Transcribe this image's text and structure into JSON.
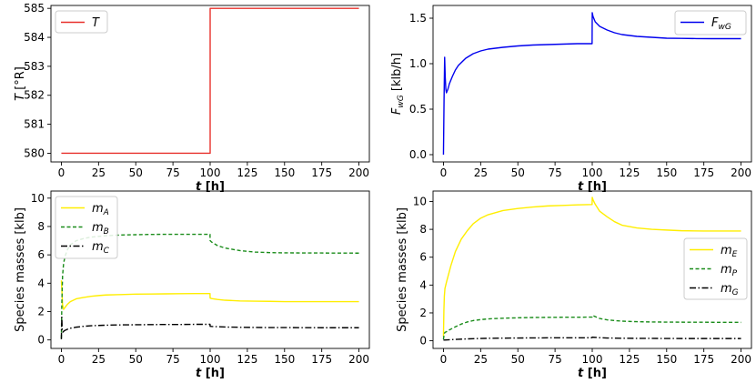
{
  "chart_data": [
    {
      "id": "p1",
      "type": "line",
      "xlabel": "t [h]",
      "ylabel": "T [°R]",
      "xlim": [
        -7,
        207
      ],
      "ylim": [
        579.7,
        585.1
      ],
      "xticks": [
        0,
        25,
        50,
        75,
        100,
        125,
        150,
        175,
        200
      ],
      "yticks": [
        580,
        581,
        582,
        583,
        584,
        585
      ],
      "ytick_labels": [
        "580",
        "581",
        "582",
        "583",
        "584",
        "585"
      ],
      "legend_position": "top-left",
      "series": [
        {
          "name": "T",
          "sub": "",
          "color": "#e8302c",
          "dash": "solid",
          "x": [
            0,
            100,
            100,
            200
          ],
          "y": [
            580,
            580,
            585,
            585
          ]
        }
      ]
    },
    {
      "id": "p2",
      "type": "line",
      "xlabel": "t [h]",
      "ylabel": "F_wG [klb/h]",
      "xlim": [
        -7,
        207
      ],
      "ylim": [
        -0.08,
        1.64
      ],
      "xticks": [
        0,
        25,
        50,
        75,
        100,
        125,
        150,
        175,
        200
      ],
      "yticks": [
        0,
        0.5,
        1,
        1.5
      ],
      "ytick_labels": [
        "0.0",
        "0.5",
        "1.0",
        "1.5"
      ],
      "legend_position": "top-right",
      "series": [
        {
          "name": "F",
          "sub": "wG",
          "color": "#0000ee",
          "dash": "solid",
          "x": [
            0,
            0.4,
            0.8,
            1.2,
            1.6,
            2,
            3,
            4,
            6,
            8,
            10,
            15,
            20,
            25,
            30,
            40,
            50,
            60,
            70,
            80,
            90,
            99.9,
            100,
            100.5,
            102,
            105,
            110,
            115,
            120,
            130,
            140,
            150,
            160,
            170,
            180,
            190,
            200
          ],
          "y": [
            0,
            0.6,
            1.07,
            0.85,
            0.72,
            0.68,
            0.72,
            0.78,
            0.86,
            0.93,
            0.98,
            1.06,
            1.11,
            1.14,
            1.16,
            1.18,
            1.195,
            1.205,
            1.21,
            1.215,
            1.22,
            1.22,
            1.56,
            1.52,
            1.46,
            1.41,
            1.37,
            1.34,
            1.32,
            1.3,
            1.29,
            1.28,
            1.278,
            1.276,
            1.275,
            1.275,
            1.275
          ]
        }
      ]
    },
    {
      "id": "p3",
      "type": "line",
      "xlabel": "t [h]",
      "ylabel": "Species masses [klb]",
      "xlim": [
        -7,
        207
      ],
      "ylim": [
        -0.6,
        10.5
      ],
      "xticks": [
        0,
        25,
        50,
        75,
        100,
        125,
        150,
        175,
        200
      ],
      "yticks": [
        0,
        2,
        4,
        6,
        8,
        10
      ],
      "ytick_labels": [
        "0",
        "2",
        "4",
        "6",
        "8",
        "10"
      ],
      "legend_position": "top-left",
      "series": [
        {
          "name": "m",
          "sub": "A",
          "color": "#ffee00",
          "dash": "solid",
          "x": [
            0,
            0.3,
            0.8,
            1.5,
            2.5,
            4,
            6,
            10,
            15,
            20,
            25,
            30,
            40,
            50,
            60,
            70,
            80,
            90,
            99.9,
            100,
            101,
            105,
            110,
            120,
            130,
            140,
            150,
            175,
            200
          ],
          "y": [
            4.2,
            3.6,
            2.5,
            2.15,
            2.3,
            2.5,
            2.7,
            2.9,
            3.0,
            3.08,
            3.13,
            3.17,
            3.2,
            3.23,
            3.24,
            3.25,
            3.26,
            3.27,
            3.27,
            2.95,
            2.92,
            2.85,
            2.8,
            2.75,
            2.73,
            2.72,
            2.7,
            2.7,
            2.7
          ]
        },
        {
          "name": "m",
          "sub": "B",
          "color": "#1a8c1a",
          "dash": "dashed",
          "x": [
            0,
            0.3,
            0.8,
            1.5,
            2.5,
            4,
            6,
            10,
            15,
            20,
            25,
            30,
            40,
            50,
            60,
            70,
            80,
            90,
            99.9,
            100,
            101,
            105,
            110,
            120,
            130,
            140,
            150,
            175,
            200
          ],
          "y": [
            0.1,
            2.5,
            4.5,
            5.4,
            5.9,
            6.35,
            6.7,
            7.0,
            7.15,
            7.25,
            7.3,
            7.35,
            7.4,
            7.42,
            7.44,
            7.45,
            7.45,
            7.45,
            7.45,
            7.0,
            6.9,
            6.65,
            6.48,
            6.3,
            6.2,
            6.16,
            6.14,
            6.13,
            6.12
          ]
        },
        {
          "name": "m",
          "sub": "C",
          "color": "#000000",
          "dash": "dashdot",
          "x": [
            0,
            0.3,
            0.6,
            1,
            2,
            4,
            6,
            10,
            15,
            20,
            25,
            30,
            40,
            50,
            60,
            70,
            80,
            90,
            99.9,
            100,
            101,
            105,
            110,
            120,
            130,
            140,
            150,
            175,
            200
          ],
          "y": [
            0.05,
            1.6,
            0.6,
            0.55,
            0.65,
            0.75,
            0.82,
            0.9,
            0.96,
            1.0,
            1.02,
            1.04,
            1.06,
            1.07,
            1.08,
            1.09,
            1.09,
            1.1,
            1.1,
            0.96,
            0.95,
            0.93,
            0.91,
            0.89,
            0.88,
            0.87,
            0.87,
            0.86,
            0.86
          ]
        }
      ]
    },
    {
      "id": "p4",
      "type": "line",
      "xlabel": "t [h]",
      "ylabel": "Species masses [klb]",
      "xlim": [
        -7,
        207
      ],
      "ylim": [
        -0.55,
        10.75
      ],
      "xticks": [
        0,
        25,
        50,
        75,
        100,
        125,
        150,
        175,
        200
      ],
      "yticks": [
        0,
        2,
        4,
        6,
        8,
        10
      ],
      "ytick_labels": [
        "0",
        "2",
        "4",
        "6",
        "8",
        "10"
      ],
      "legend_position": "center-right",
      "series": [
        {
          "name": "m",
          "sub": "E",
          "color": "#ffee00",
          "dash": "solid",
          "x": [
            0,
            0.3,
            0.6,
            1,
            2,
            3,
            5,
            8,
            12,
            16,
            20,
            25,
            30,
            40,
            50,
            60,
            70,
            80,
            90,
            99.9,
            100,
            100.6,
            102,
            105,
            110,
            115,
            120,
            130,
            140,
            150,
            160,
            175,
            200
          ],
          "y": [
            0.3,
            2.2,
            3.2,
            3.75,
            4.2,
            4.6,
            5.4,
            6.4,
            7.3,
            7.9,
            8.4,
            8.8,
            9.05,
            9.35,
            9.5,
            9.6,
            9.68,
            9.72,
            9.76,
            9.78,
            10.3,
            10.1,
            9.8,
            9.3,
            8.9,
            8.55,
            8.3,
            8.1,
            8.0,
            7.95,
            7.9,
            7.88,
            7.88
          ]
        },
        {
          "name": "m",
          "sub": "P",
          "color": "#1a8c1a",
          "dash": "dashed",
          "x": [
            0,
            0.5,
            1,
            2,
            4,
            8,
            12,
            16,
            20,
            25,
            30,
            40,
            50,
            60,
            70,
            80,
            90,
            99.9,
            100,
            101,
            105,
            110,
            115,
            120,
            130,
            140,
            150,
            175,
            200
          ],
          "y": [
            0.1,
            0.5,
            0.6,
            0.65,
            0.78,
            1.0,
            1.2,
            1.35,
            1.45,
            1.52,
            1.57,
            1.62,
            1.65,
            1.67,
            1.68,
            1.69,
            1.69,
            1.7,
            1.8,
            1.78,
            1.6,
            1.5,
            1.45,
            1.41,
            1.37,
            1.35,
            1.34,
            1.33,
            1.32
          ]
        },
        {
          "name": "m",
          "sub": "G",
          "color": "#000000",
          "dash": "dashdot",
          "x": [
            0,
            2,
            5,
            10,
            20,
            30,
            50,
            70,
            90,
            99.9,
            100,
            101,
            105,
            110,
            120,
            140,
            160,
            200
          ],
          "y": [
            0.05,
            0.06,
            0.08,
            0.11,
            0.15,
            0.18,
            0.2,
            0.21,
            0.21,
            0.22,
            0.26,
            0.25,
            0.22,
            0.2,
            0.18,
            0.17,
            0.16,
            0.16
          ]
        }
      ]
    }
  ]
}
